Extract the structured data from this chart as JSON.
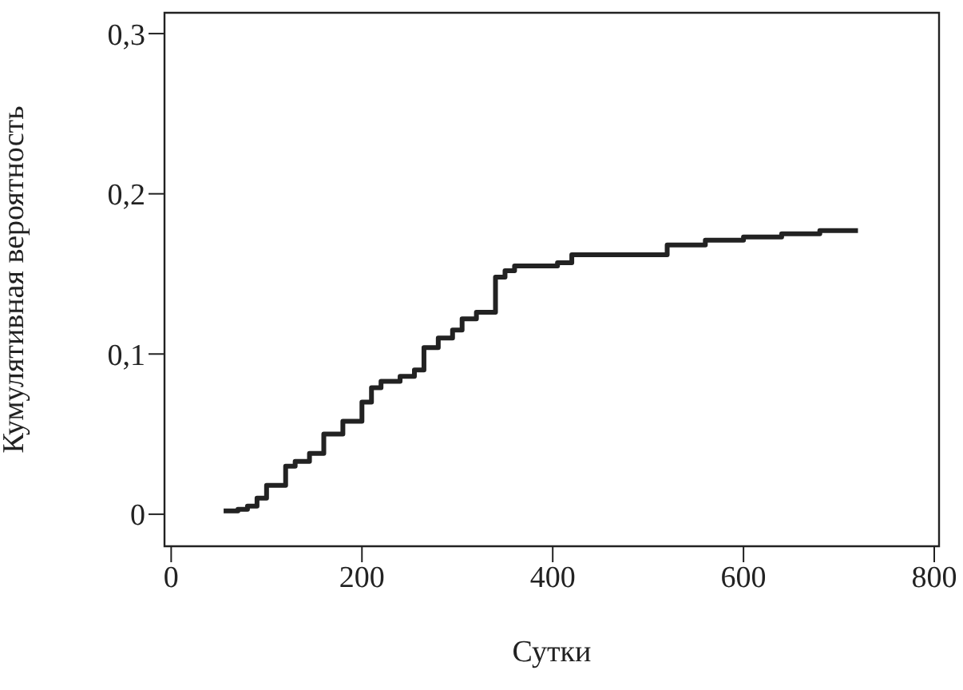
{
  "chart_data": {
    "type": "step",
    "xlabel": "Сутки",
    "ylabel": "Кумулятивная вероятность",
    "x": [
      55,
      70,
      80,
      90,
      100,
      120,
      130,
      145,
      160,
      180,
      200,
      210,
      220,
      240,
      255,
      265,
      280,
      295,
      305,
      320,
      340,
      350,
      360,
      405,
      420,
      510,
      520,
      560,
      600,
      640,
      680,
      720
    ],
    "series": [
      {
        "color": "#222222",
        "values": [
          0.002,
          0.003,
          0.005,
          0.01,
          0.018,
          0.03,
          0.033,
          0.038,
          0.05,
          0.058,
          0.07,
          0.079,
          0.083,
          0.086,
          0.09,
          0.104,
          0.11,
          0.115,
          0.122,
          0.126,
          0.148,
          0.152,
          0.155,
          0.157,
          0.162,
          0.162,
          0.168,
          0.171,
          0.173,
          0.175,
          0.177,
          0.177
        ]
      }
    ],
    "xlim": [
      -7,
      805
    ],
    "xticks": [
      0,
      200,
      400,
      600,
      800
    ],
    "ylim": [
      -0.02,
      0.313
    ],
    "yticks": [
      {
        "value": 0,
        "label": "0"
      },
      {
        "value": 0.1,
        "label": "0,1"
      },
      {
        "value": 0.2,
        "label": "0,2"
      },
      {
        "value": 0.3,
        "label": "0,3"
      }
    ],
    "grid": false,
    "legend": false
  }
}
